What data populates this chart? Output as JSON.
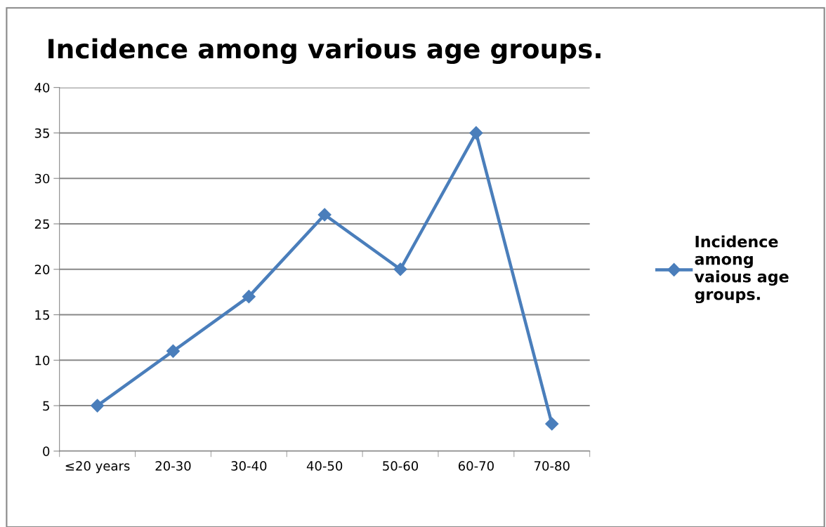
{
  "chart_data": {
    "type": "line",
    "title": "Incidence among various age groups.",
    "categories": [
      "≤20 years",
      "20-30",
      "30-40",
      "40-50",
      "50-60",
      "60-70",
      "70-80"
    ],
    "series": [
      {
        "name": "Incidence among vaious age groups.",
        "color": "#4a7ebb",
        "values": [
          5,
          11,
          17,
          26,
          20,
          35,
          3
        ]
      }
    ],
    "ylim": [
      0,
      40
    ],
    "yticks": [
      0,
      5,
      10,
      15,
      20,
      25,
      30,
      35,
      40
    ],
    "grid": "y",
    "legend": "right",
    "marker": "diamond",
    "line_style": "solid"
  }
}
